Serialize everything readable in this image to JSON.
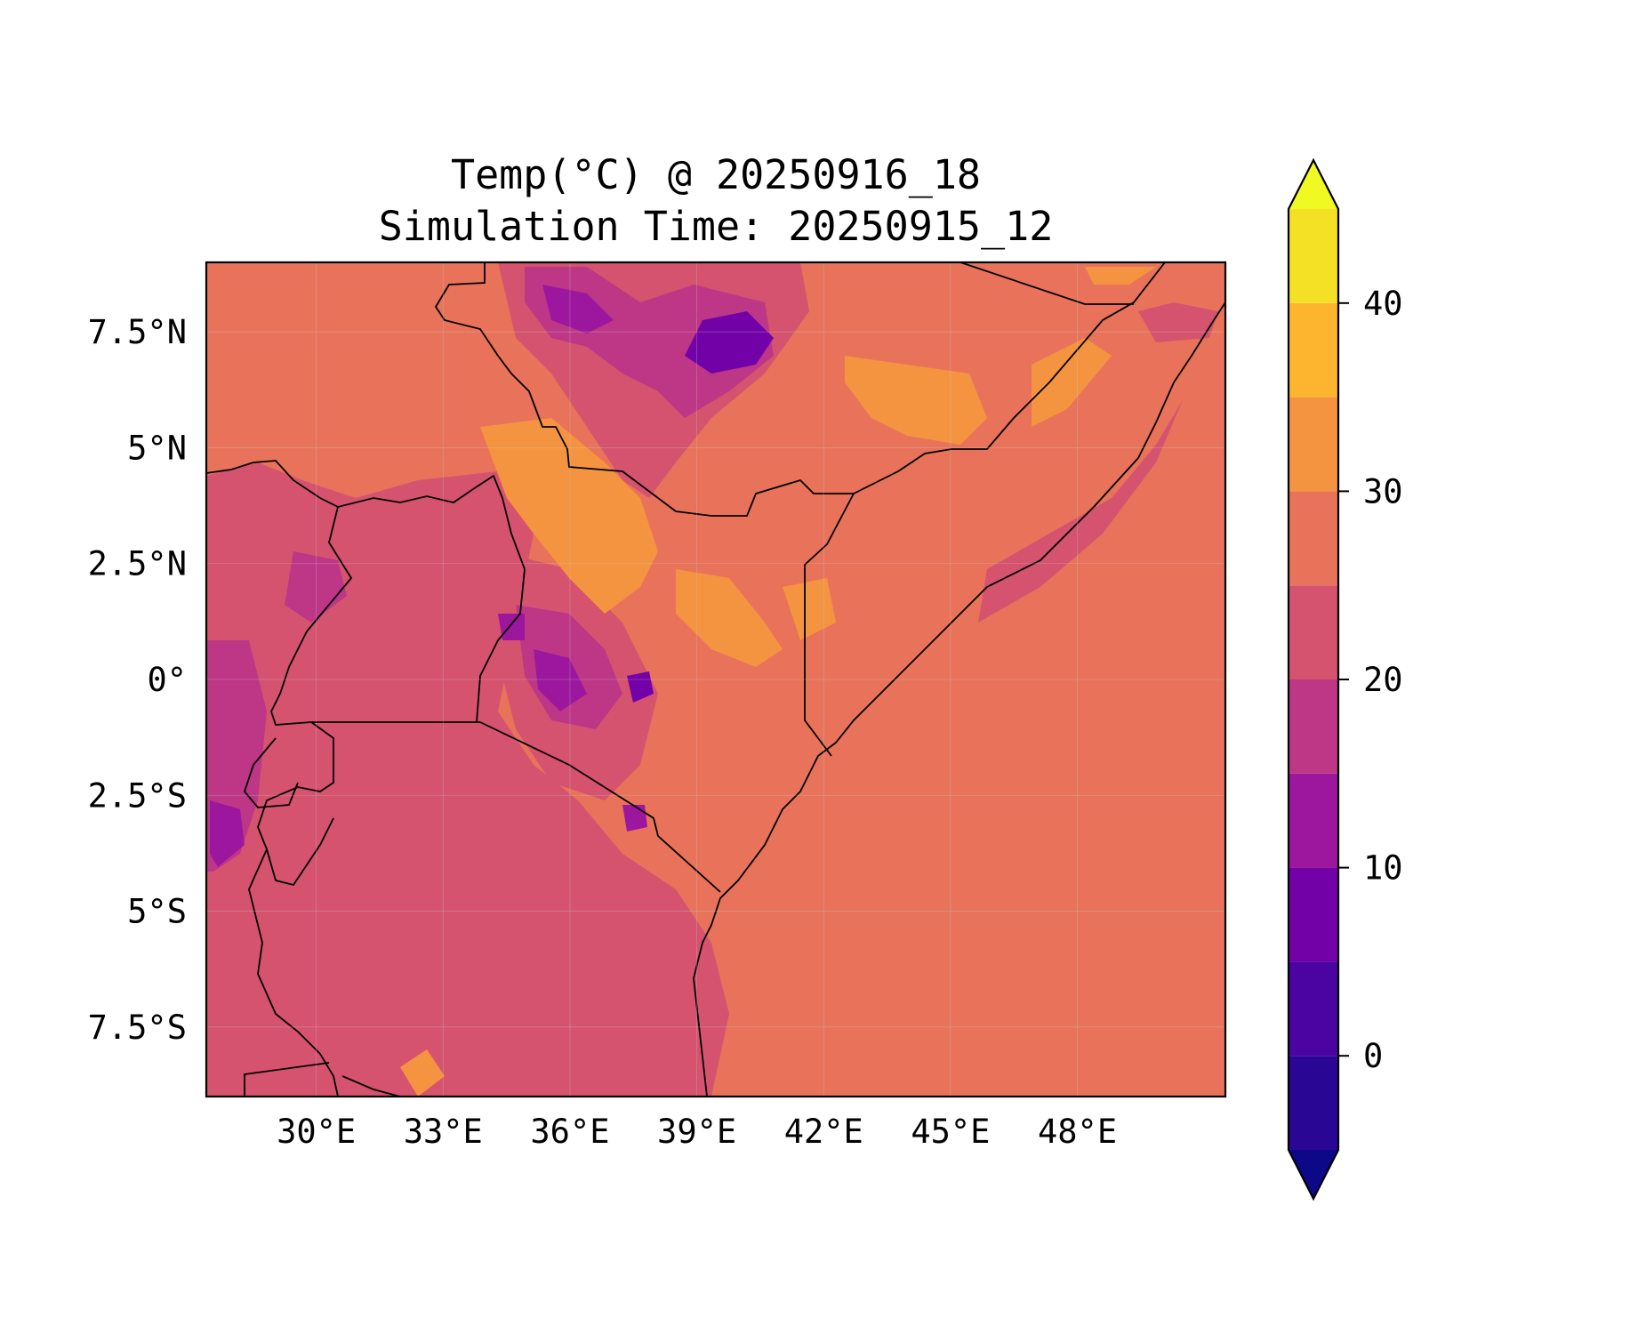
{
  "title": {
    "line1": "Temp(°C) @ 20250916_18",
    "line2": "Simulation Time: 20250915_12"
  },
  "map": {
    "variable": "Temp(°C)",
    "extent_lon": [
      27.4,
      51.5
    ],
    "extent_lat": [
      -9.0,
      9.0
    ],
    "gridlines": true,
    "lon_ticks": [
      {
        "value": 30,
        "label": "30°E"
      },
      {
        "value": 33,
        "label": "33°E"
      },
      {
        "value": 36,
        "label": "36°E"
      },
      {
        "value": 39,
        "label": "39°E"
      },
      {
        "value": 42,
        "label": "42°E"
      },
      {
        "value": 45,
        "label": "45°E"
      },
      {
        "value": 48,
        "label": "48°E"
      }
    ],
    "lat_ticks": [
      {
        "value": 7.5,
        "label": "7.5°N"
      },
      {
        "value": 5,
        "label": "5°N"
      },
      {
        "value": 2.5,
        "label": "2.5°N"
      },
      {
        "value": 0,
        "label": "0°"
      },
      {
        "value": -2.5,
        "label": "2.5°S"
      },
      {
        "value": -5,
        "label": "5°S"
      },
      {
        "value": -7.5,
        "label": "7.5°S"
      }
    ],
    "background_color": "#e8735a"
  },
  "colorbar": {
    "extend": "both",
    "range": [
      -5,
      45
    ],
    "levels": [
      {
        "from": -5,
        "to": 0,
        "color": "#2a0694"
      },
      {
        "from": 0,
        "to": 5,
        "color": "#4b03a1"
      },
      {
        "from": 5,
        "to": 10,
        "color": "#7201a8"
      },
      {
        "from": 10,
        "to": 15,
        "color": "#9c179e"
      },
      {
        "from": 15,
        "to": 20,
        "color": "#bd3786"
      },
      {
        "from": 20,
        "to": 25,
        "color": "#d5536f"
      },
      {
        "from": 25,
        "to": 30,
        "color": "#e8735a"
      },
      {
        "from": 30,
        "to": 35,
        "color": "#f59440"
      },
      {
        "from": 35,
        "to": 40,
        "color": "#fdb42f"
      },
      {
        "from": 40,
        "to": 45,
        "color": "#f4e025"
      }
    ],
    "under_color": "#0d0887",
    "over_color": "#f0f921",
    "ticks": [
      {
        "value": 0,
        "label": "0"
      },
      {
        "value": 10,
        "label": "10"
      },
      {
        "value": 20,
        "label": "20"
      },
      {
        "value": 30,
        "label": "30"
      },
      {
        "value": 40,
        "label": "40"
      }
    ]
  }
}
